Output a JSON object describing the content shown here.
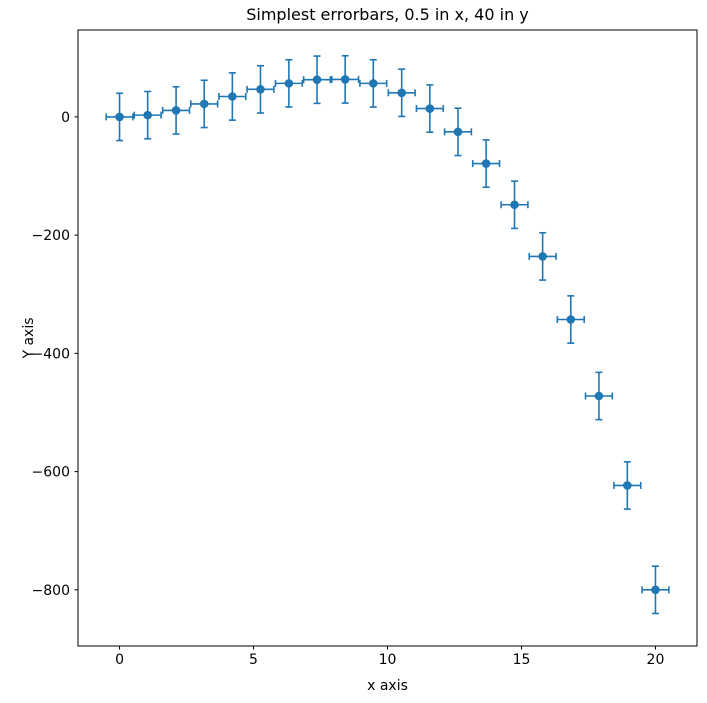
{
  "chart_data": {
    "type": "scatter",
    "title": "Simplest errorbars, 0.5 in x, 40 in y",
    "xlabel": "x axis",
    "ylabel": "Y axis",
    "xlim": [
      -1.55,
      21.55
    ],
    "ylim": [
      -895,
      147
    ],
    "xticks": [
      0,
      5,
      10,
      15,
      20
    ],
    "xtick_labels": [
      "0",
      "5",
      "10",
      "15",
      "20"
    ],
    "yticks": [
      0,
      -200,
      -400,
      -600,
      -800
    ],
    "ytick_labels": [
      "0",
      "−200",
      "−400",
      "−600",
      "−800"
    ],
    "grid": false,
    "legend": null,
    "marker": "o",
    "line_between_points": false,
    "color": "#1f77b4",
    "spine_color": "#000000",
    "background_color": "#ffffff",
    "xerr": 0.5,
    "yerr": 40,
    "x": [
      0,
      1.05,
      2.11,
      3.16,
      4.21,
      5.26,
      6.32,
      7.37,
      8.42,
      9.47,
      10.53,
      11.58,
      12.63,
      13.68,
      14.74,
      15.79,
      16.84,
      17.89,
      18.95,
      20
    ],
    "y": [
      0,
      3.0,
      11.0,
      22.0,
      34.5,
      46.6,
      56.7,
      62.9,
      63.4,
      56.7,
      40.8,
      14.1,
      -25.3,
      -78.9,
      -148.6,
      -236.0,
      -342.7,
      -472.1,
      -623.4,
      -800.0
    ]
  }
}
